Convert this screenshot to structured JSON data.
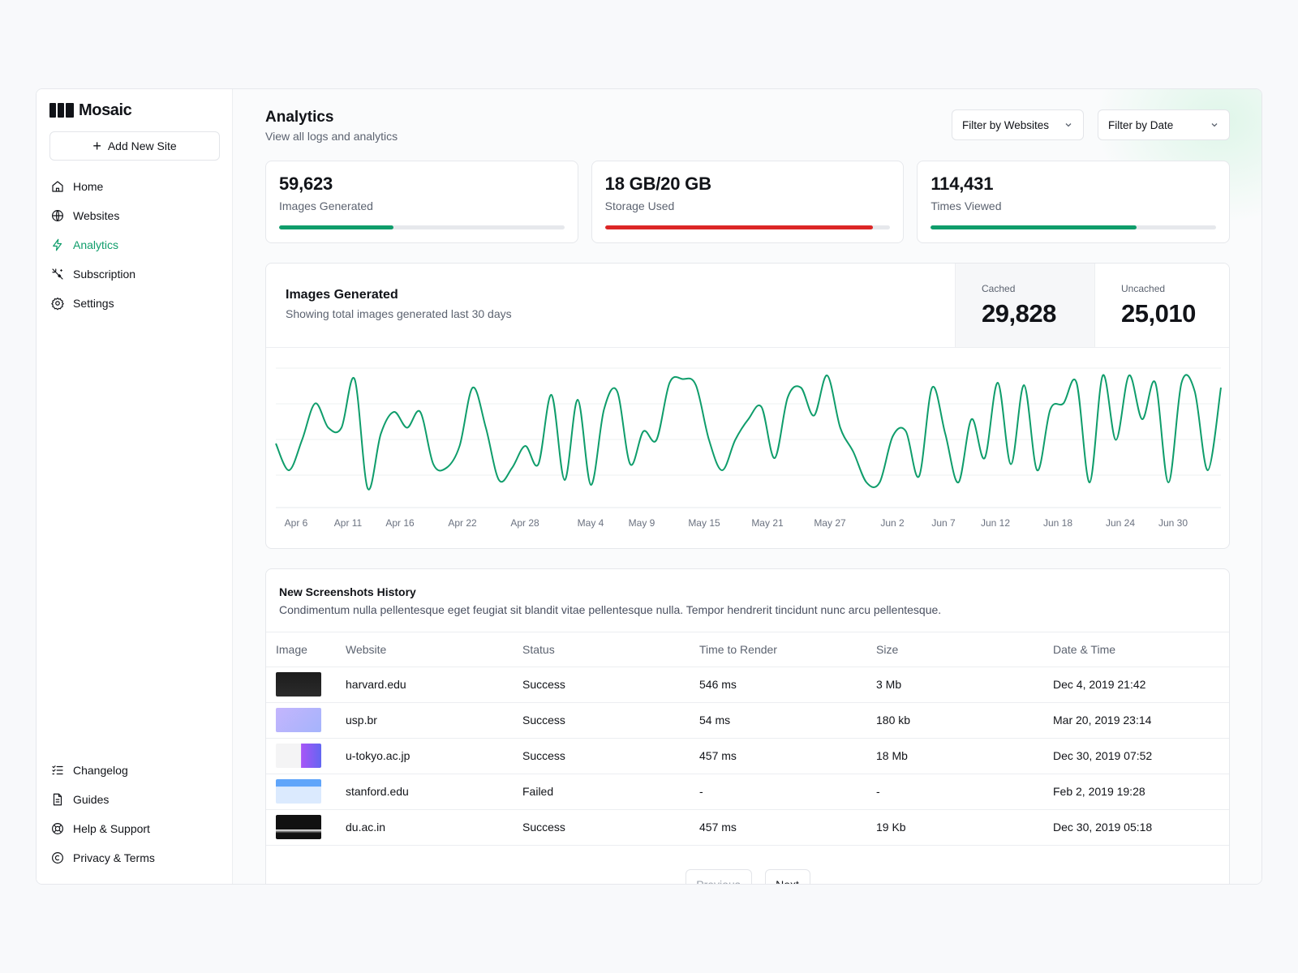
{
  "brand": {
    "name": "Mosaic"
  },
  "sidebar": {
    "add_site_label": "Add New Site",
    "items": [
      {
        "label": "Home",
        "icon": "home-icon",
        "active": false
      },
      {
        "label": "Websites",
        "icon": "globe-icon",
        "active": false
      },
      {
        "label": "Analytics",
        "icon": "lightning-icon",
        "active": true
      },
      {
        "label": "Subscription",
        "icon": "sparkle-icon",
        "active": false
      },
      {
        "label": "Settings",
        "icon": "gear-icon",
        "active": false
      }
    ],
    "bottom_items": [
      {
        "label": "Changelog",
        "icon": "list-icon"
      },
      {
        "label": "Guides",
        "icon": "document-icon"
      },
      {
        "label": "Help & Support",
        "icon": "lifebuoy-icon"
      },
      {
        "label": "Privacy & Terms",
        "icon": "copyright-icon"
      }
    ]
  },
  "header": {
    "title": "Analytics",
    "subtitle": "View all logs and analytics",
    "filter_websites": "Filter by Websites",
    "filter_date": "Filter by Date"
  },
  "stats": [
    {
      "value": "59,623",
      "label": "Images Generated",
      "progress": 0.4,
      "color": "#0f9d6b"
    },
    {
      "value": "18 GB/20 GB",
      "label": "Storage Used",
      "progress": 0.94,
      "color": "#dc2626"
    },
    {
      "value": "114,431",
      "label": "Times Viewed",
      "progress": 0.72,
      "color": "#0f9d6b"
    }
  ],
  "chart": {
    "title": "Images Generated",
    "subtitle": "Showing total images generated last 30 days",
    "cached_label": "Cached",
    "cached_value": "29,828",
    "uncached_label": "Uncached",
    "uncached_value": "25,010",
    "line_color": "#0f9d6b"
  },
  "chart_data": {
    "type": "line",
    "title": "Images Generated",
    "x_tick_labels": [
      "Apr 6",
      "Apr 11",
      "Apr 16",
      "Apr 22",
      "Apr 28",
      "May 4",
      "May 9",
      "May 15",
      "May 21",
      "May 27",
      "Jun 2",
      "Jun 7",
      "Jun 12",
      "Jun 18",
      "Jun 24",
      "Jun 30"
    ],
    "series": [
      {
        "values": [
          0.42,
          0.2,
          0.45,
          0.75,
          0.55,
          0.55,
          0.95,
          0.05,
          0.5,
          0.68,
          0.55,
          0.68,
          0.25,
          0.22,
          0.4,
          0.88,
          0.55,
          0.12,
          0.22,
          0.4,
          0.25,
          0.82,
          0.12,
          0.78,
          0.08,
          0.7,
          0.85,
          0.25,
          0.52,
          0.45,
          0.92,
          0.95,
          0.9,
          0.45,
          0.2,
          0.45,
          0.62,
          0.72,
          0.3,
          0.8,
          0.88,
          0.65,
          0.98,
          0.55,
          0.35,
          0.1,
          0.1,
          0.48,
          0.52,
          0.15,
          0.88,
          0.5,
          0.1,
          0.62,
          0.3,
          0.92,
          0.25,
          0.9,
          0.2,
          0.7,
          0.75,
          0.92,
          0.1,
          0.98,
          0.45,
          0.98,
          0.62,
          0.92,
          0.1,
          0.92,
          0.85,
          0.2,
          0.88
        ]
      }
    ],
    "grid": true,
    "legend": "none"
  },
  "table": {
    "title": "New Screenshots History",
    "description": "Condimentum nulla pellentesque eget feugiat sit blandit vitae pellentesque nulla. Tempor hendrerit tincidunt nunc arcu pellentesque.",
    "columns": [
      "Image",
      "Website",
      "Status",
      "Time to Render",
      "Size",
      "Date & Time"
    ],
    "rows": [
      {
        "thumb": "thumb-dark",
        "website": "harvard.edu",
        "status": "Success",
        "time": "546 ms",
        "size": "3 Mb",
        "date": "Dec 4, 2019 21:42"
      },
      {
        "thumb": "thumb-purple",
        "website": "usp.br",
        "status": "Success",
        "time": "54 ms",
        "size": "180 kb",
        "date": "Mar 20, 2019 23:14"
      },
      {
        "thumb": "thumb-light",
        "website": "u-tokyo.ac.jp",
        "status": "Success",
        "time": "457 ms",
        "size": "18 Mb",
        "date": "Dec 30, 2019 07:52"
      },
      {
        "thumb": "thumb-blue",
        "website": "stanford.edu",
        "status": "Failed",
        "time": "-",
        "size": "-",
        "date": "Feb 2, 2019 19:28"
      },
      {
        "thumb": "thumb-black",
        "website": "du.ac.in",
        "status": "Success",
        "time": "457 ms",
        "size": "19 Kb",
        "date": "Dec 30, 2019 05:18"
      }
    ]
  },
  "pagination": {
    "previous": "Previous",
    "next": "Next"
  }
}
